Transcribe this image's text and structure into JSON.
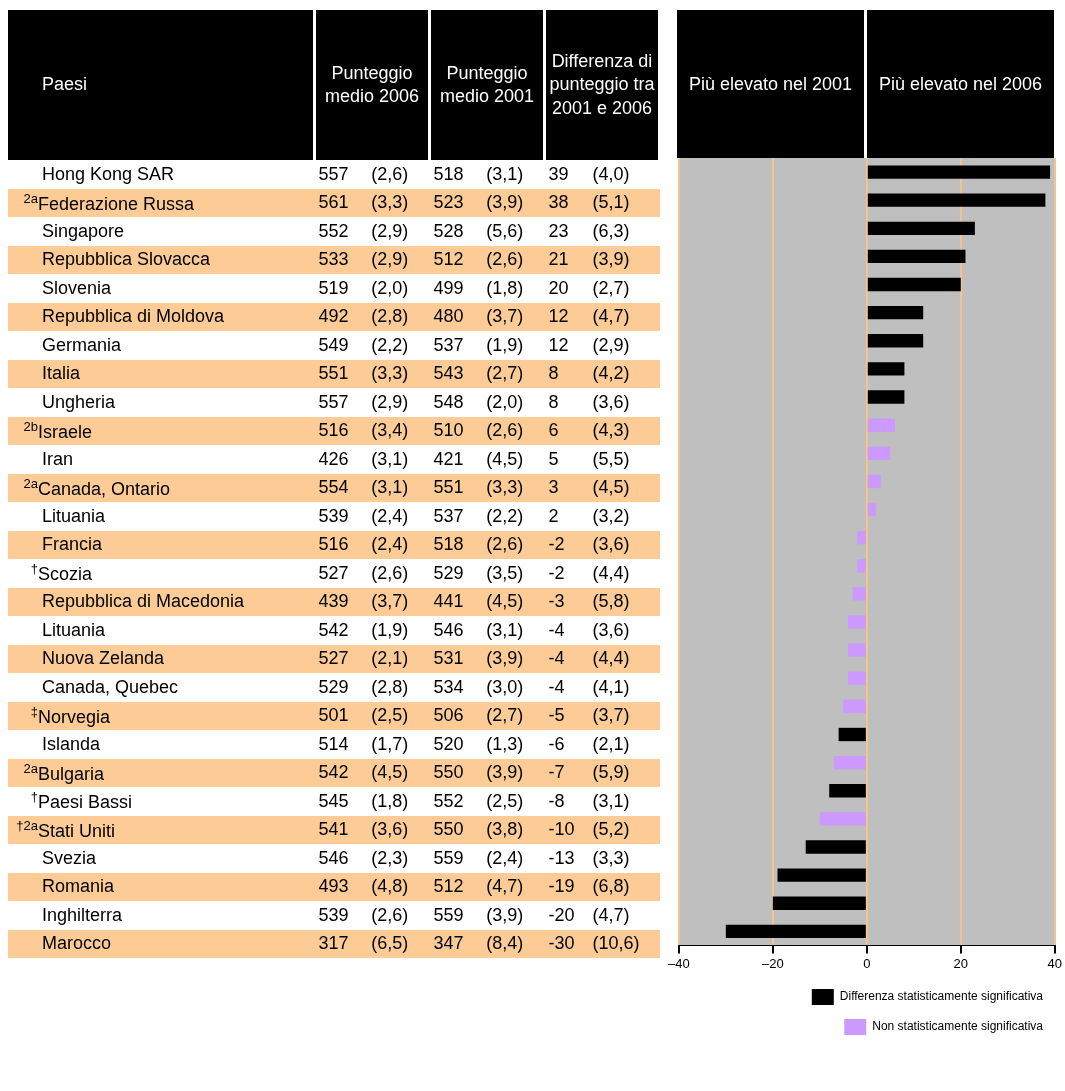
{
  "chart_data": [
    {
      "type": "other",
      "annotations": [
        "Paesi",
        "Punteggio medio 2006",
        "Punteggio medio 2001",
        "Differenza di punteggio tra 2001 e 2006",
        "Hong Kong SAR",
        "557",
        "(2,6)",
        "518",
        "(3,1)",
        "39",
        "(4,0)",
        "$^{2a}$Federazione Russa",
        "561",
        "(3,3)",
        "523",
        "(3,9)",
        "38",
        "(5,1)",
        "Singapore",
        "552",
        "(2,9)",
        "528",
        "(5,6)",
        "23",
        "(6,3)",
        "Repubblica Slovacca",
        "533",
        "(2,9)",
        "512",
        "(2,6)",
        "21",
        "(3,9)",
        "Slovenia",
        "519",
        "(2,0)",
        "499",
        "(1,8)",
        "20",
        "(2,7)",
        "Repubblica di Moldova",
        "492",
        "(2,8)",
        "480",
        "(3,7)",
        "12",
        "(4,7)",
        "Germania",
        "549",
        "(2,2)",
        "537",
        "(1,9)",
        "12",
        "(2,9)",
        "Italia",
        "551",
        "(3,3)",
        "543",
        "(2,7)",
        "8",
        "(4,2)",
        "Ungheria",
        "557",
        "(2,9)",
        "548",
        "(2,0)",
        "8",
        "(3,6)",
        "$^{2b}$Israele",
        "516",
        "(3,4)",
        "510",
        "(2,6)",
        "6",
        "(4,3)",
        "Iran",
        "426",
        "(3,1)",
        "421",
        "(4,5)",
        "5",
        "(5,5)",
        "$^{2a}$Canada, Ontario",
        "554",
        "(3,1)",
        "551",
        "(3,3)",
        "3",
        "(4,5)",
        "Lituania",
        "539",
        "(2,4)",
        "537",
        "(2,2)",
        "2",
        "(3,2)",
        "Francia",
        "516",
        "(2,4)",
        "518",
        "(2,6)",
        "-2",
        "(3,6)",
        "$^{†}$Scozia",
        "527",
        "(2,6)",
        "529",
        "(3,5)",
        "-2",
        "(4,4)",
        "Repubblica di Macedonia",
        "439",
        "(3,7)",
        "441",
        "(4,5)",
        "-3",
        "(5,8)",
        "Lituania",
        "542",
        "(1,9)",
        "546",
        "(3,1)",
        "-4",
        "(3,6)",
        "Nuova Zelanda",
        "527",
        "(2,1)",
        "531",
        "(3,9)",
        "-4",
        "(4,4)",
        "Canada, Quebec",
        "529",
        "(2,8)",
        "534",
        "(3,0)",
        "-4",
        "(4,1)",
        "$^{‡}$Norvegia",
        "501",
        "(2,5)",
        "506",
        "(2,7)",
        "-5",
        "(3,7)",
        "Islanda",
        "514",
        "(1,7)",
        "520",
        "(1,3)",
        "-6",
        "(2,1)",
        "$^{2a}$Bulgaria",
        "542",
        "(4,5)",
        "550",
        "(3,9)",
        "-7",
        "(5,9)",
        "$^{†}$Paesi Bassi",
        "545",
        "(1,8)",
        "552",
        "(2,5)",
        "-8",
        "(3,1)",
        "$^{†2a}$Stati Uniti",
        "541",
        "(3,6)",
        "550",
        "(3,8)",
        "-10",
        "(5,2)",
        "Svezia",
        "546",
        "(2,3)",
        "559",
        "(2,4)",
        "-13",
        "(3,3)",
        "Romania",
        "493",
        "(4,8)",
        "512",
        "(4,7)",
        "-19",
        "(6,8)",
        "Inghilterra",
        "539",
        "(2,6)",
        "559",
        "(3,9)",
        "-20",
        "(4,7)",
        "Marocco",
        "317",
        "(6,5)",
        "347",
        "(8,4)",
        "-30",
        "(10,6)"
      ]
    },
    {
      "type": "bar",
      "orientation": "horizontal",
      "stacked": true,
      "categories": [
        null,
        null,
        null,
        null,
        null,
        null,
        null,
        null,
        null,
        null,
        null,
        null,
        null,
        null,
        null,
        null,
        null,
        null,
        null,
        null,
        null,
        null,
        null,
        null,
        null,
        null,
        null,
        null
      ],
      "series": [
        {
          "name": "Differenza statisticamente significativa",
          "color": "#000000",
          "values": [
            39,
            38,
            23,
            21,
            20,
            12,
            12,
            8,
            8,
            null,
            null,
            null,
            null,
            null,
            null,
            null,
            null,
            null,
            null,
            null,
            -6,
            null,
            -8,
            null,
            -13,
            -19,
            -20,
            -30
          ]
        },
        {
          "name": "Non statisticamente significativa",
          "color": "#cc99ff",
          "values": [
            null,
            null,
            null,
            null,
            null,
            null,
            null,
            null,
            null,
            6,
            5,
            3,
            2,
            -2,
            -2,
            -3,
            -4,
            -4,
            -4,
            -5,
            null,
            -7,
            null,
            -10,
            null,
            null,
            null,
            null
          ]
        }
      ],
      "xlim": [
        -40,
        40
      ],
      "xticks": [
        {
          "value": -40,
          "label": "–40"
        },
        {
          "value": -20,
          "label": "–20"
        },
        0,
        20,
        40
      ],
      "grid": "x",
      "tick_labels": "x",
      "legend": "bottom right",
      "annotations": [
        "Più elevato nel 2001",
        "Più elevato nel 2006"
      ]
    }
  ]
}
